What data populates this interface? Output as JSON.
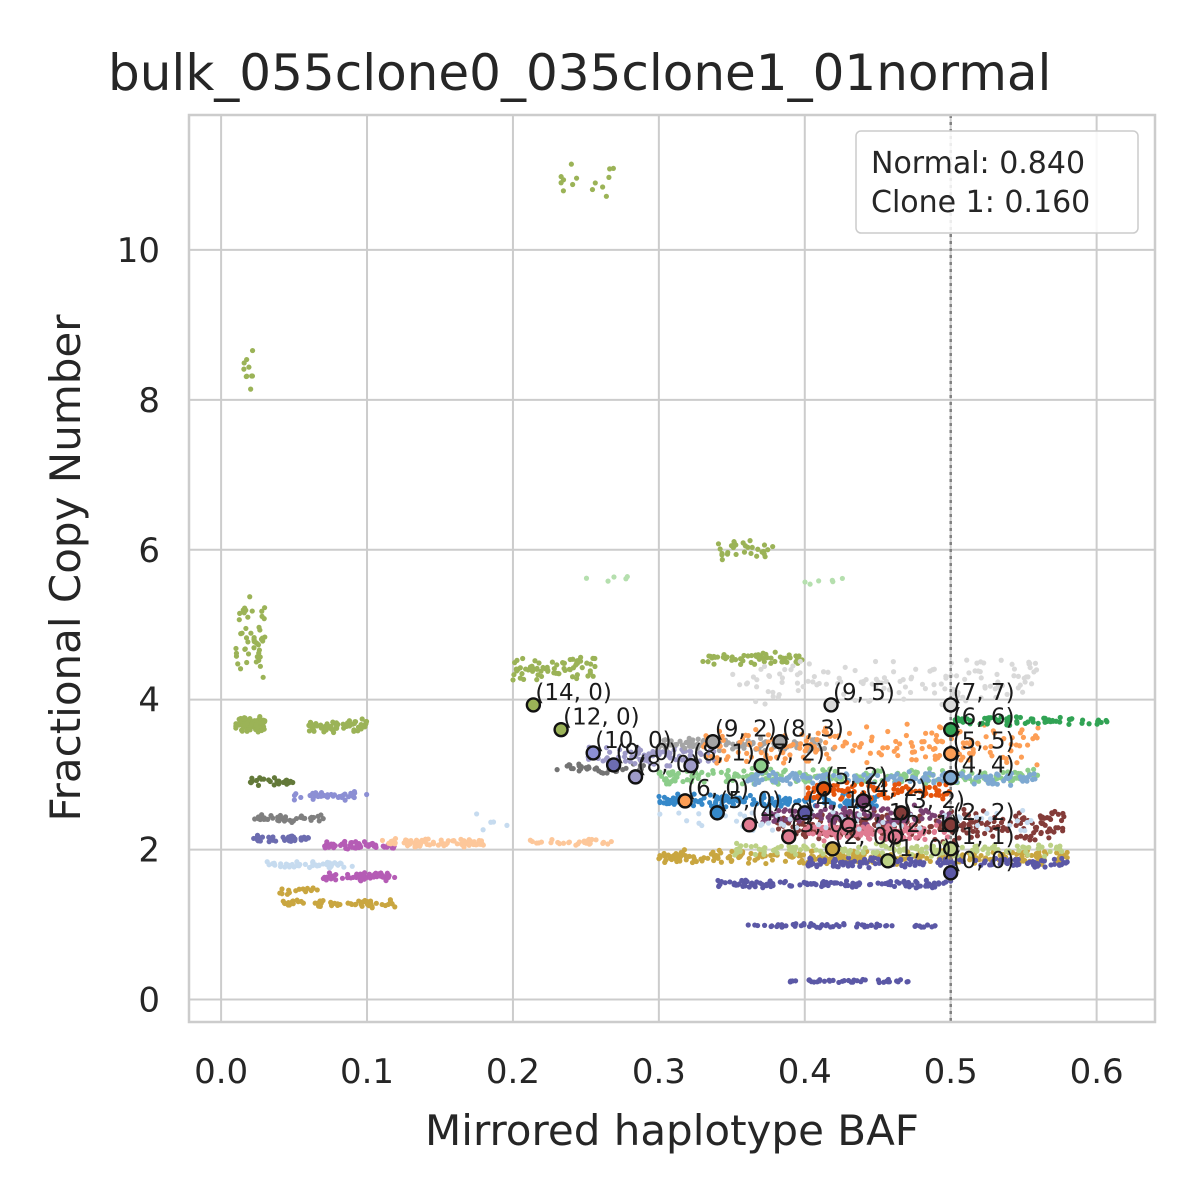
{
  "chart_data": {
    "type": "scatter",
    "title": "bulk_055clone0_035clone1_01normal",
    "xlabel": "Mirrored haplotype BAF",
    "ylabel": "Fractional Copy Number",
    "xlim": [
      -0.022,
      0.64
    ],
    "ylim": [
      -0.3,
      11.8
    ],
    "xticks": [
      0.0,
      0.1,
      0.2,
      0.3,
      0.4,
      0.5,
      0.6
    ],
    "xtick_labels": [
      "0.0",
      "0.1",
      "0.2",
      "0.3",
      "0.4",
      "0.5",
      "0.6"
    ],
    "yticks": [
      0,
      2,
      4,
      6,
      8,
      10
    ],
    "ytick_labels": [
      "0",
      "2",
      "4",
      "6",
      "8",
      "10"
    ],
    "grid": true,
    "vline_x": 0.5,
    "legend": {
      "placement": "top-right",
      "lines": [
        "Normal: 0.840",
        "Clone 1: 0.160"
      ]
    },
    "point_clusters": [
      {
        "x": [
          0.01,
          0.03
        ],
        "y": [
          3.55,
          3.8
        ],
        "n": 90,
        "color": "#9bb357"
      },
      {
        "x": [
          0.06,
          0.1
        ],
        "y": [
          3.55,
          3.75
        ],
        "n": 70,
        "color": "#9bb357"
      },
      {
        "x": [
          0.01,
          0.03
        ],
        "y": [
          4.2,
          5.4
        ],
        "n": 50,
        "color": "#9bb357"
      },
      {
        "x": [
          0.015,
          0.022
        ],
        "y": [
          8.0,
          8.85
        ],
        "n": 10,
        "color": "#9bb357"
      },
      {
        "x": [
          0.2,
          0.26
        ],
        "y": [
          4.25,
          4.6
        ],
        "n": 70,
        "color": "#9bb357"
      },
      {
        "x": [
          0.23,
          0.27
        ],
        "y": [
          10.7,
          11.2
        ],
        "n": 14,
        "color": "#9bb357"
      },
      {
        "x": [
          0.33,
          0.4
        ],
        "y": [
          4.45,
          4.65
        ],
        "n": 60,
        "color": "#9bb357"
      },
      {
        "x": [
          0.34,
          0.38
        ],
        "y": [
          5.85,
          6.15
        ],
        "n": 30,
        "color": "#9bb357"
      },
      {
        "x": [
          0.02,
          0.05
        ],
        "y": [
          2.85,
          2.98
        ],
        "n": 25,
        "color": "#637939"
      },
      {
        "x": [
          0.02,
          0.07
        ],
        "y": [
          2.35,
          2.48
        ],
        "n": 40,
        "color": "#7f7f7f"
      },
      {
        "x": [
          0.05,
          0.1
        ],
        "y": [
          2.65,
          2.78
        ],
        "n": 40,
        "color": "#8c8fd4"
      },
      {
        "x": [
          0.02,
          0.06
        ],
        "y": [
          2.1,
          2.2
        ],
        "n": 40,
        "color": "#6c6cb0"
      },
      {
        "x": [
          0.07,
          0.12
        ],
        "y": [
          2.0,
          2.12
        ],
        "n": 60,
        "color": "#b55cb5"
      },
      {
        "x": [
          0.07,
          0.12
        ],
        "y": [
          1.58,
          1.7
        ],
        "n": 60,
        "color": "#b55cb5"
      },
      {
        "x": [
          0.03,
          0.09
        ],
        "y": [
          1.75,
          1.85
        ],
        "n": 45,
        "color": "#c6dbef"
      },
      {
        "x": [
          0.04,
          0.07
        ],
        "y": [
          1.4,
          1.5
        ],
        "n": 15,
        "color": "#c9a640"
      },
      {
        "x": [
          0.04,
          0.12
        ],
        "y": [
          1.22,
          1.34
        ],
        "n": 60,
        "color": "#c9a640"
      },
      {
        "x": [
          0.11,
          0.18
        ],
        "y": [
          2.02,
          2.15
        ],
        "n": 80,
        "color": "#fdc79a"
      },
      {
        "x": [
          0.21,
          0.27
        ],
        "y": [
          2.05,
          2.14
        ],
        "n": 30,
        "color": "#fdc79a"
      },
      {
        "x": [
          0.23,
          0.29
        ],
        "y": [
          3.0,
          3.15
        ],
        "n": 40,
        "color": "#737373"
      },
      {
        "x": [
          0.25,
          0.34
        ],
        "y": [
          3.1,
          3.4
        ],
        "n": 80,
        "color": "#9e9ac8"
      },
      {
        "x": [
          0.3,
          0.42
        ],
        "y": [
          3.3,
          3.5
        ],
        "n": 90,
        "color": "#a5a5a5"
      },
      {
        "x": [
          0.35,
          0.56
        ],
        "y": [
          3.9,
          4.55
        ],
        "n": 130,
        "color": "#d9d9d9"
      },
      {
        "x": [
          0.33,
          0.56
        ],
        "y": [
          3.1,
          3.7
        ],
        "n": 180,
        "color": "#fd9e55"
      },
      {
        "x": [
          0.3,
          0.56
        ],
        "y": [
          2.85,
          3.1
        ],
        "n": 200,
        "color": "#8ccd8a"
      },
      {
        "x": [
          0.36,
          0.56
        ],
        "y": [
          2.85,
          3.05
        ],
        "n": 150,
        "color": "#7ea9d1"
      },
      {
        "x": [
          0.3,
          0.45
        ],
        "y": [
          2.55,
          2.75
        ],
        "n": 150,
        "color": "#3588c9"
      },
      {
        "x": [
          0.4,
          0.5
        ],
        "y": [
          2.65,
          2.9
        ],
        "n": 90,
        "color": "#e6550d"
      },
      {
        "x": [
          0.38,
          0.58
        ],
        "y": [
          2.1,
          2.55
        ],
        "n": 260,
        "color": "#843c39"
      },
      {
        "x": [
          0.37,
          0.5
        ],
        "y": [
          2.3,
          2.6
        ],
        "n": 140,
        "color": "#7b4173"
      },
      {
        "x": [
          0.4,
          0.5
        ],
        "y": [
          2.1,
          2.35
        ],
        "n": 110,
        "color": "#e07b91"
      },
      {
        "x": [
          0.3,
          0.56
        ],
        "y": [
          2.2,
          2.55
        ],
        "n": 60,
        "color": "#c6dbef"
      },
      {
        "x": [
          0.3,
          0.58
        ],
        "y": [
          1.8,
          2.0
        ],
        "n": 280,
        "color": "#c9a640"
      },
      {
        "x": [
          0.4,
          0.58
        ],
        "y": [
          1.75,
          1.9
        ],
        "n": 150,
        "color": "#5b58a6"
      },
      {
        "x": [
          0.35,
          0.58
        ],
        "y": [
          1.9,
          2.1
        ],
        "n": 140,
        "color": "#bcd185"
      },
      {
        "x": [
          0.34,
          0.5
        ],
        "y": [
          1.48,
          1.6
        ],
        "n": 130,
        "color": "#5b58a6"
      },
      {
        "x": [
          0.36,
          0.49
        ],
        "y": [
          0.95,
          1.02
        ],
        "n": 60,
        "color": "#5b58a6"
      },
      {
        "x": [
          0.39,
          0.48
        ],
        "y": [
          0.22,
          0.28
        ],
        "n": 40,
        "color": "#5b58a6"
      },
      {
        "x": [
          0.5,
          0.61
        ],
        "y": [
          3.65,
          3.78
        ],
        "n": 70,
        "color": "#31a354"
      },
      {
        "x": [
          0.5,
          0.56
        ],
        "y": [
          4.45,
          4.55
        ],
        "n": 10,
        "color": "#d9d9d9"
      },
      {
        "x": [
          0.4,
          0.43
        ],
        "y": [
          5.5,
          5.65
        ],
        "n": 6,
        "color": "#b5dfae"
      },
      {
        "x": [
          0.25,
          0.28
        ],
        "y": [
          5.55,
          5.65
        ],
        "n": 5,
        "color": "#b5dfae"
      },
      {
        "x": [
          0.16,
          0.2
        ],
        "y": [
          2.2,
          2.5
        ],
        "n": 5,
        "color": "#c6dbef"
      }
    ],
    "annotations": [
      {
        "label": "(14, 0)",
        "x": 0.214,
        "y": 3.93,
        "fill": "#9bb357"
      },
      {
        "label": "(12, 0)",
        "x": 0.233,
        "y": 3.6,
        "fill": "#9bb357"
      },
      {
        "label": "(10, 0)",
        "x": 0.255,
        "y": 3.29,
        "fill": "#8c8fd4"
      },
      {
        "label": "(9, 0)",
        "x": 0.269,
        "y": 3.13,
        "fill": "#6c6cb0"
      },
      {
        "label": "(8, 0)",
        "x": 0.284,
        "y": 2.97,
        "fill": "#9e9ac8"
      },
      {
        "label": "(8, 1)",
        "x": 0.322,
        "y": 3.12,
        "fill": "#9e9ac8"
      },
      {
        "label": "(9, 2)",
        "x": 0.337,
        "y": 3.44,
        "fill": "#a5a5a5"
      },
      {
        "label": "(8, 3)",
        "x": 0.383,
        "y": 3.44,
        "fill": "#a5a5a5"
      },
      {
        "label": "(7, 2)",
        "x": 0.37,
        "y": 3.12,
        "fill": "#8ccd8a"
      },
      {
        "label": "(9, 5)",
        "x": 0.418,
        "y": 3.93,
        "fill": "#d9d9d9"
      },
      {
        "label": "(7, 7)",
        "x": 0.5,
        "y": 3.93,
        "fill": "#d9d9d9"
      },
      {
        "label": "(6, 6)",
        "x": 0.5,
        "y": 3.6,
        "fill": "#31a354"
      },
      {
        "label": "(5, 5)",
        "x": 0.5,
        "y": 3.28,
        "fill": "#fd9e55"
      },
      {
        "label": "(4, 4)",
        "x": 0.5,
        "y": 2.96,
        "fill": "#7ea9d1"
      },
      {
        "label": "(6, 0)",
        "x": 0.318,
        "y": 2.65,
        "fill": "#fd9e55"
      },
      {
        "label": "(5, 0)",
        "x": 0.34,
        "y": 2.49,
        "fill": "#3588c9"
      },
      {
        "label": "(5, 2)",
        "x": 0.413,
        "y": 2.81,
        "fill": "#e6550d"
      },
      {
        "label": "(4, 0)",
        "x": 0.362,
        "y": 2.33,
        "fill": "#e07b91"
      },
      {
        "label": "(4, 1)",
        "x": 0.4,
        "y": 2.49,
        "fill": "#5b58a6"
      },
      {
        "label": "(4, 2)",
        "x": 0.44,
        "y": 2.65,
        "fill": "#7b4173"
      },
      {
        "label": "(3, 0)",
        "x": 0.389,
        "y": 2.17,
        "fill": "#e07b91"
      },
      {
        "label": "(3, 1)",
        "x": 0.43,
        "y": 2.33,
        "fill": "#e07b91"
      },
      {
        "label": "(3, 2)",
        "x": 0.466,
        "y": 2.49,
        "fill": "#843c39"
      },
      {
        "label": "(2, 2)",
        "x": 0.5,
        "y": 2.33,
        "fill": "#843c39"
      },
      {
        "label": "(2, 1)",
        "x": 0.462,
        "y": 2.17,
        "fill": "#e07b91"
      },
      {
        "label": "(2, 0)",
        "x": 0.419,
        "y": 2.01,
        "fill": "#c9a640"
      },
      {
        "label": "(1, 1)",
        "x": 0.5,
        "y": 2.01,
        "fill": "#bcd185"
      },
      {
        "label": "(1, 0)",
        "x": 0.457,
        "y": 1.85,
        "fill": "#bcd185"
      },
      {
        "label": "(0, 0)",
        "x": 0.5,
        "y": 1.69,
        "fill": "#5b58a6"
      }
    ]
  }
}
